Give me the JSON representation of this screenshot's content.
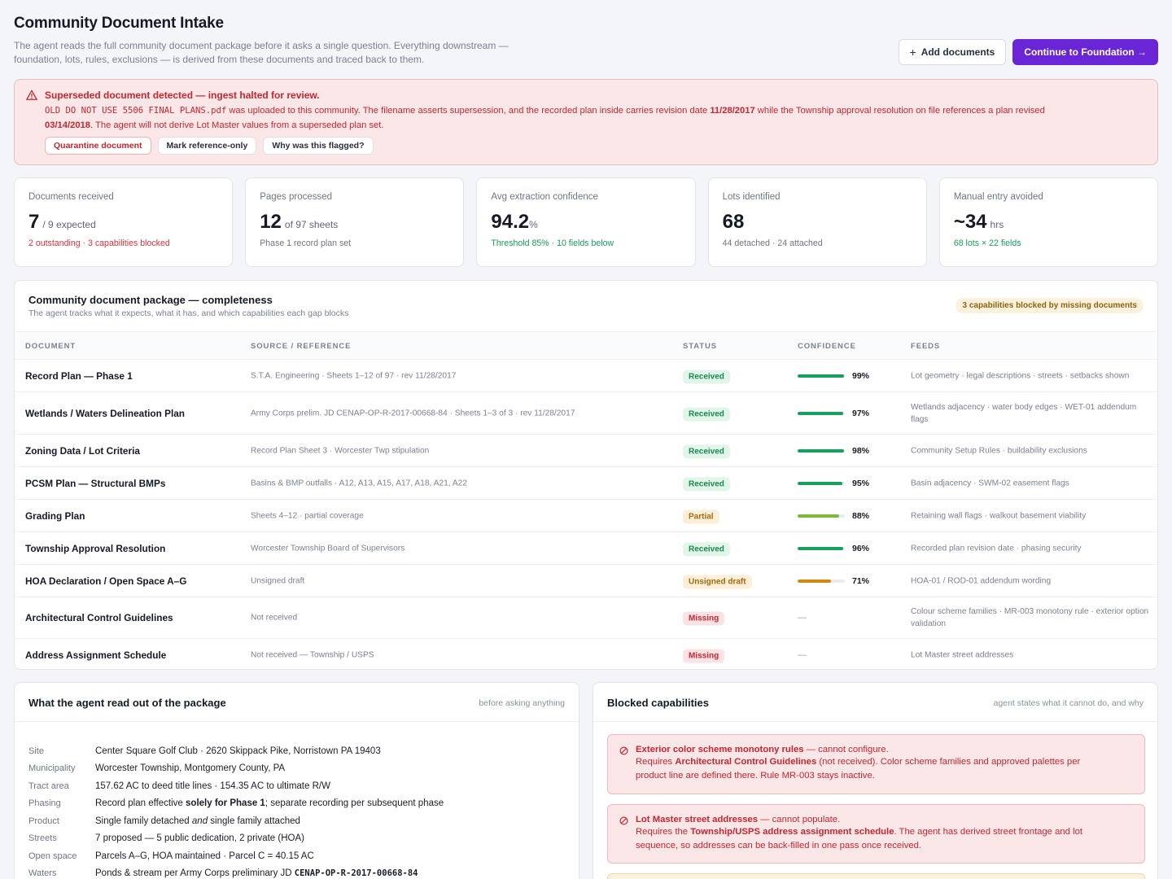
{
  "header": {
    "title": "Community Document Intake",
    "subtitle_line1": "The agent reads the full community document package before it asks a single question. Everything downstream —",
    "subtitle_line2": "foundation, lots, rules, exclusions — is derived from these documents and traced back to them.",
    "add_documents": "Add documents",
    "continue": "Continue to Foundation →"
  },
  "alert": {
    "title": "Superseded document detected — ingest halted for review.",
    "filename": "OLD DO NOT USE 5506 FINAL PLANS.pdf",
    "text1": " was uploaded to this community. The filename asserts supersession, and the recorded plan inside carries revision date ",
    "date1": "11/28/2017",
    "text2": " while the Township approval resolution on file references a plan revised",
    "date2": "03/14/2018",
    "text3": ". The agent will not derive Lot Master values from a superseded plan set.",
    "chips": [
      "Quarantine document",
      "Mark reference-only",
      "Why was this flagged?"
    ]
  },
  "stats": [
    {
      "label": "Documents received",
      "big": "7",
      "small": "/ 9 expected",
      "note": "2 outstanding · 3 capabilities blocked"
    },
    {
      "label": "Pages processed",
      "big": "12",
      "small": "of 97 sheets",
      "note": "Phase 1 record plan set"
    },
    {
      "label": "Avg extraction confidence",
      "big": "94.2",
      "small": "%",
      "note": "Threshold 85% · 10 fields below"
    },
    {
      "label": "Lots identified",
      "big": "68",
      "small": "",
      "note": "44 detached · 24 attached"
    },
    {
      "label": "Manual entry avoided",
      "big": "~34",
      "small": "hrs",
      "note": "68 lots × 22 fields"
    }
  ],
  "package": {
    "title": "Community document package — completeness",
    "subtitle": "The agent tracks what it expects, what it has, and which capabilities each gap blocks",
    "badge": "3 capabilities blocked by missing documents",
    "columns": [
      "DOCUMENT",
      "SOURCE / REFERENCE",
      "STATUS",
      "CONFIDENCE",
      "FEEDS"
    ],
    "rows": [
      {
        "doc": "Record Plan — Phase 1",
        "src": "S.T.A. Engineering · Sheets 1–12 of 97 · rev 11/28/2017",
        "status": "Received",
        "conf": 0.99,
        "conf_label": "99%",
        "feeds": "Lot geometry · legal descriptions · streets · setbacks shown"
      },
      {
        "doc": "Wetlands / Waters Delineation Plan",
        "src": "Army Corps prelim. JD CENAP-OP-R-2017-00668-84 · Sheets 1–3 of 3 · rev 11/28/2017",
        "status": "Received",
        "conf": 0.97,
        "conf_label": "97%",
        "feeds": "Wetlands adjacency · water body edges · WET-01 addendum flags"
      },
      {
        "doc": "Zoning Data / Lot Criteria",
        "src": "Record Plan Sheet 3 · Worcester Twp stipulation",
        "status": "Received",
        "conf": 0.98,
        "conf_label": "98%",
        "feeds": "Community Setup Rules · buildability exclusions"
      },
      {
        "doc": "PCSM Plan — Structural BMPs",
        "src": "Basins & BMP outfalls · A12, A13, A15, A17, A18, A21, A22",
        "status": "Received",
        "conf": 0.95,
        "conf_label": "95%",
        "feeds": "Basin adjacency · SWM-02 easement flags"
      },
      {
        "doc": "Grading Plan",
        "src": "Sheets 4–12 · partial coverage",
        "status": "Partial",
        "conf": 0.88,
        "conf_label": "88%",
        "feeds": "Retaining wall flags · walkout basement viability"
      },
      {
        "doc": "Township Approval Resolution",
        "src": "Worcester Township Board of Supervisors",
        "status": "Received",
        "conf": 0.96,
        "conf_label": "96%",
        "feeds": "Recorded plan revision date · phasing security"
      },
      {
        "doc": "HOA Declaration / Open Space A–G",
        "src": "Unsigned draft",
        "status": "Unsigned draft",
        "conf": 0.71,
        "conf_label": "71%",
        "feeds": "HOA-01 / ROD-01 addendum wording"
      },
      {
        "doc": "Architectural Control Guidelines",
        "src": "Not received",
        "status": "Missing",
        "conf": null,
        "conf_label": "—",
        "feeds": "Colour scheme families · MR-003 monotony rule · exterior option validation"
      },
      {
        "doc": "Address Assignment Schedule",
        "src": "Not received — Township / USPS",
        "status": "Missing",
        "conf": null,
        "conf_label": "—",
        "feeds": "Lot Master street addresses"
      }
    ]
  },
  "read": {
    "title": "What the agent read out of the package",
    "note": "before asking anything",
    "items": [
      {
        "k": "Site",
        "v": "Center Square Golf Club · 2620 Skippack Pike, Norristown PA 19403"
      },
      {
        "k": "Municipality",
        "v": "Worcester Township, Montgomery County, PA"
      },
      {
        "k": "Tract area",
        "v": "157.62 AC to deed title lines · 154.35 AC to ultimate R/W"
      },
      {
        "k": "Phasing",
        "v_pre": "Record plan effective ",
        "v_bold": "solely for Phase 1",
        "v_post": "; separate recording per subsequent phase"
      },
      {
        "k": "Product",
        "v_pre": "Single family detached ",
        "v_italic": "and",
        "v_post": " single family attached"
      },
      {
        "k": "Streets",
        "v": "7 proposed — 5 public dedication, 2 private (HOA)"
      },
      {
        "k": "Open space",
        "v": "Parcels A–G, HOA maintained · Parcel C = 40.15 AC"
      },
      {
        "k": "Waters",
        "v_pre": "Ponds & stream per Army Corps preliminary JD ",
        "v_mono": "CENAP-OP-R-2017-00668-84"
      }
    ]
  },
  "blocked": {
    "title": "Blocked capabilities",
    "note": "agent states what it cannot do, and why",
    "items": [
      {
        "name": "Exterior color scheme monotony rules",
        "verdict": " — cannot configure.",
        "req_pre": "Requires ",
        "req_bold": "Architectural Control Guidelines",
        "req_post": " (not received). Color scheme families and approved palettes per",
        "line3": "product line are defined there. Rule MR-003 stays inactive."
      },
      {
        "name": "Lot Master street addresses",
        "verdict": " — cannot populate.",
        "req_pre": "Requires the ",
        "req_bold": "Township/USPS address assignment schedule",
        "req_post": ". The agent has derived street frontage and lot",
        "line3": "sequence, so addresses can be back-filled in one pass once received."
      }
    ]
  },
  "colors": {
    "primary": "#6a25d6",
    "danger": "#c7262f",
    "success": "#168a4c",
    "warning": "#a46a0d",
    "bar_green": "#17a05d",
    "bar_lime": "#7cb839",
    "bar_amber": "#d18a10"
  }
}
